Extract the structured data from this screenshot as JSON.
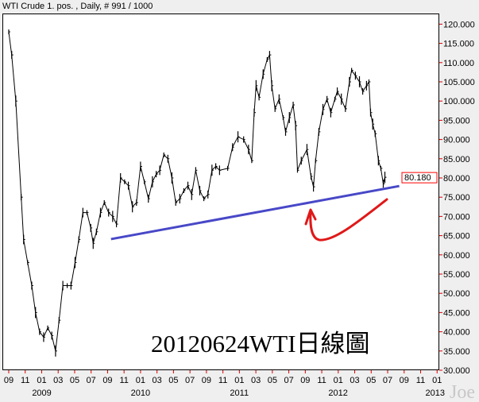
{
  "header": {
    "title": "WTI Crude 1. pos. , Daily, # 991 / 1000"
  },
  "annotation": {
    "caption": "20120624WTI日線圖",
    "watermark": "Joe"
  },
  "colors": {
    "price": "#000000",
    "trendline": "#4848c8",
    "arrow": "#e01818",
    "tick": "#e00000",
    "last_price": "#0000ff"
  },
  "chart_data": {
    "type": "line",
    "title": "WTI Crude 1. pos. , Daily, # 991 / 1000",
    "ylim": [
      30,
      122
    ],
    "xlim": [
      "2008-08-20",
      "2013-01-20"
    ],
    "grid": false,
    "y_ticks": [
      "30.000",
      "35.000",
      "40.000",
      "45.000",
      "50.000",
      "55.000",
      "60.000",
      "65.000",
      "70.000",
      "75.000",
      "80.000",
      "85.000",
      "90.000",
      "95.000",
      "100.000",
      "105.000",
      "110.000",
      "115.000",
      "120.000"
    ],
    "x_month_ticks": [
      "09",
      "11",
      "01",
      "03",
      "05",
      "07",
      "09",
      "11",
      "01",
      "03",
      "05",
      "07",
      "09",
      "11",
      "01",
      "03",
      "05",
      "07",
      "09",
      "11",
      "01",
      "03",
      "05",
      "07",
      "09",
      "11",
      "01"
    ],
    "x_year_labels": [
      {
        "label": "2009",
        "date": "2009-01-01"
      },
      {
        "label": "2010",
        "date": "2010-01-01"
      },
      {
        "label": "2011",
        "date": "2011-01-01"
      },
      {
        "label": "2012",
        "date": "2012-01-01"
      },
      {
        "label": "2013",
        "date": "2013-01-01"
      }
    ],
    "last_price": "80.180",
    "series": [
      {
        "x": [
          "2008-09-01",
          "2008-09-12",
          "2008-09-27",
          "2008-10-17",
          "2008-10-26",
          "2008-11-10",
          "2008-11-25",
          "2008-12-09",
          "2008-12-24",
          "2009-01-08",
          "2009-01-23",
          "2009-02-07",
          "2009-02-21",
          "2009-03-06",
          "2009-03-20",
          "2009-04-05",
          "2009-04-19",
          "2009-05-04",
          "2009-05-18",
          "2009-06-02",
          "2009-06-17",
          "2009-07-01",
          "2009-07-10",
          "2009-07-22",
          "2009-08-06",
          "2009-08-20",
          "2009-09-05",
          "2009-09-20",
          "2009-10-04",
          "2009-10-19",
          "2009-11-03",
          "2009-11-17",
          "2009-12-02",
          "2009-12-17",
          "2010-01-01",
          "2010-01-15",
          "2010-01-30",
          "2010-02-14",
          "2010-02-28",
          "2010-03-13",
          "2010-03-28",
          "2010-04-12",
          "2010-04-27",
          "2010-05-11",
          "2010-05-26",
          "2010-06-10",
          "2010-06-25",
          "2010-07-09",
          "2010-07-24",
          "2010-08-08",
          "2010-08-23",
          "2010-09-07",
          "2010-09-22",
          "2010-10-06",
          "2010-10-20",
          "2010-11-19",
          "2010-12-07",
          "2010-12-27",
          "2011-01-17",
          "2011-02-04",
          "2011-02-16",
          "2011-02-25",
          "2011-03-04",
          "2011-03-15",
          "2011-03-30",
          "2011-04-14",
          "2011-04-23",
          "2011-05-01",
          "2011-05-13",
          "2011-05-28",
          "2011-06-12",
          "2011-06-21",
          "2011-07-05",
          "2011-07-19",
          "2011-07-28",
          "2011-08-04",
          "2011-08-18",
          "2011-09-08",
          "2011-09-23",
          "2011-10-02",
          "2011-10-10",
          "2011-10-22",
          "2011-11-06",
          "2011-11-21",
          "2011-12-05",
          "2011-12-20",
          "2011-12-29",
          "2012-01-13",
          "2012-01-28",
          "2012-02-12",
          "2012-02-20",
          "2012-03-05",
          "2012-03-20",
          "2012-04-01",
          "2012-04-15",
          "2012-04-24",
          "2012-04-30",
          "2012-05-08",
          "2012-05-17",
          "2012-05-29",
          "2012-06-07",
          "2012-06-16",
          "2012-06-22"
        ],
        "y": [
          118,
          112,
          100,
          75,
          64,
          58,
          52,
          45,
          40,
          38.6,
          41,
          39,
          35,
          43,
          52,
          52,
          52,
          58,
          64,
          71,
          71,
          67,
          63,
          66,
          71,
          73.6,
          71,
          70,
          68,
          80,
          79,
          78,
          72.5,
          73.6,
          83,
          79,
          74.6,
          79,
          81,
          82,
          86,
          85,
          80,
          73.6,
          74.6,
          76.7,
          78,
          75.7,
          82,
          76.7,
          74.6,
          75.7,
          82,
          83,
          82,
          82.5,
          88,
          90.7,
          90,
          87.4,
          84.5,
          97,
          104,
          101,
          107,
          110.8,
          112,
          104,
          98,
          100.5,
          95.7,
          92,
          95.7,
          99,
          93.6,
          82,
          84.5,
          87.4,
          80.4,
          77.7,
          84.5,
          92,
          97.8,
          100.5,
          97,
          100.5,
          102.5,
          100.5,
          98,
          105,
          108,
          106.6,
          105,
          102.5,
          104,
          105,
          97,
          94,
          91.5,
          84.5,
          82.5,
          78.5,
          80.18
        ]
      }
    ],
    "trendline": {
      "x": [
        "2009-09-14",
        "2012-08-14"
      ],
      "y": [
        64.1,
        77.9
      ]
    }
  }
}
